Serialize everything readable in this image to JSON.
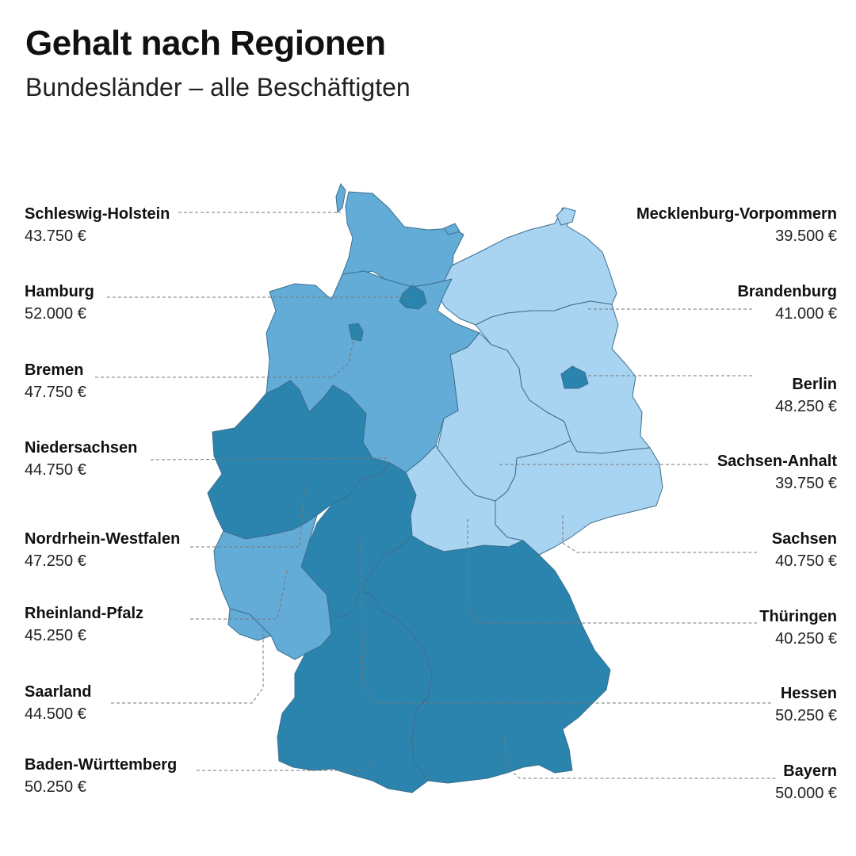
{
  "header": {
    "title": "Gehalt nach Regionen",
    "subtitle": "Bundesländer – alle Beschäftigten"
  },
  "colors": {
    "tier_high": "#2b84ad",
    "tier_mid": "#63acd8",
    "tier_low": "#a8d4f2",
    "border": "#3c6f8e",
    "leader": "#777777"
  },
  "chart_data": {
    "type": "choropleth",
    "regions": [
      {
        "name": "Schleswig-Holstein",
        "value": "43.750 €",
        "amount": 43750,
        "tier": "mid"
      },
      {
        "name": "Hamburg",
        "value": "52.000 €",
        "amount": 52000,
        "tier": "high"
      },
      {
        "name": "Bremen",
        "value": "47.750 €",
        "amount": 47750,
        "tier": "high"
      },
      {
        "name": "Niedersachsen",
        "value": "44.750 €",
        "amount": 44750,
        "tier": "mid"
      },
      {
        "name": "Nordrhein-Westfalen",
        "value": "47.250 €",
        "amount": 47250,
        "tier": "high"
      },
      {
        "name": "Rheinland-Pfalz",
        "value": "45.250 €",
        "amount": 45250,
        "tier": "mid"
      },
      {
        "name": "Saarland",
        "value": "44.500 €",
        "amount": 44500,
        "tier": "mid"
      },
      {
        "name": "Baden-Württemberg",
        "value": "50.250 €",
        "amount": 50250,
        "tier": "high"
      },
      {
        "name": "Mecklenburg-Vorpommern",
        "value": "39.500 €",
        "amount": 39500,
        "tier": "low"
      },
      {
        "name": "Brandenburg",
        "value": "41.000 €",
        "amount": 41000,
        "tier": "low"
      },
      {
        "name": "Berlin",
        "value": "48.250 €",
        "amount": 48250,
        "tier": "high"
      },
      {
        "name": "Sachsen-Anhalt",
        "value": "39.750 €",
        "amount": 39750,
        "tier": "low"
      },
      {
        "name": "Sachsen",
        "value": "40.750 €",
        "amount": 40750,
        "tier": "low"
      },
      {
        "name": "Thüringen",
        "value": "40.250 €",
        "amount": 40250,
        "tier": "low"
      },
      {
        "name": "Hessen",
        "value": "50.250 €",
        "amount": 50250,
        "tier": "high"
      },
      {
        "name": "Bayern",
        "value": "50.000 €",
        "amount": 50000,
        "tier": "high"
      }
    ]
  }
}
